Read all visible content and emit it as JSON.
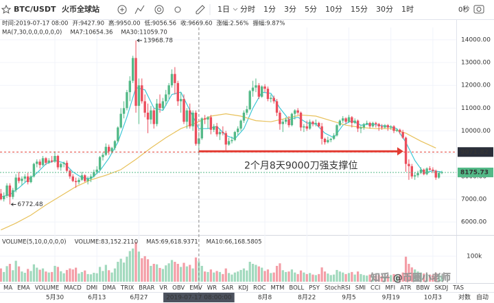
{
  "toolbar": {
    "symbol": "BTC/USDT",
    "exchange": "火币全球站",
    "interval": "1日",
    "periods": [
      "分时",
      "1分",
      "3分",
      "5分",
      "10分",
      "15分",
      "30分",
      "1时"
    ],
    "timer": "0秒"
  },
  "info": [
    "时间:2019-07-17 08:00",
    "开:9427.90",
    "高:9950.00",
    "低:9056.56",
    "收:9669.60",
    "涨幅:2.56%",
    "振幅:9.87%"
  ],
  "chart_data": {
    "type": "candlestick",
    "up_color": "#53b987",
    "down_color": "#eb4d5c",
    "grid": true,
    "ma_title": "MA(7,30,0,0,0,0,0,0)",
    "ma_lines": [
      {
        "name": "MA7:10654.36",
        "color": "#3cc7d6",
        "x": [
          0,
          3,
          6,
          9,
          12,
          15,
          18,
          21,
          24,
          27,
          30,
          33,
          36,
          39,
          42,
          45,
          48,
          51,
          54,
          57,
          60,
          63,
          66,
          69,
          72,
          75,
          78,
          81,
          84,
          87,
          90,
          93,
          96,
          99,
          102,
          105,
          108,
          111,
          114,
          117,
          120,
          123,
          126,
          129,
          132,
          135,
          138,
          141,
          144,
          147
        ],
        "values": [
          7100,
          7200,
          7500,
          7850,
          8150,
          8550,
          8700,
          8600,
          8200,
          7950,
          7900,
          8250,
          8800,
          9500,
          10600,
          11900,
          11800,
          11000,
          10900,
          11600,
          11700,
          10900,
          10100,
          10100,
          10200,
          9800,
          9650,
          10100,
          11000,
          11700,
          11650,
          11000,
          10500,
          10600,
          10350,
          10300,
          9900,
          9700,
          10250,
          10450,
          10250,
          10300,
          10250,
          10200,
          10100,
          9500,
          8700,
          8150,
          8250,
          8200
        ]
      },
      {
        "name": "MA30:11059.70",
        "color": "#e8c15a",
        "x": [
          0,
          5,
          10,
          15,
          20,
          25,
          30,
          35,
          40,
          45,
          50,
          55,
          60,
          65,
          70,
          75,
          80,
          85,
          90,
          95,
          100,
          105,
          110,
          115,
          120,
          125,
          130,
          135,
          140,
          145
        ],
        "values": [
          5650,
          5950,
          6300,
          6750,
          7150,
          7550,
          7850,
          8050,
          8300,
          8750,
          9250,
          9700,
          10100,
          10350,
          10650,
          10750,
          10650,
          10450,
          10400,
          10550,
          10700,
          10650,
          10450,
          10250,
          10150,
          10100,
          10100,
          9900,
          9550,
          9250
        ]
      }
    ],
    "candles": [
      [
        7250,
        7450,
        6950,
        7000
      ],
      [
        7000,
        7300,
        6900,
        7150
      ],
      [
        7150,
        7700,
        7050,
        7600
      ],
      [
        7600,
        7700,
        6772.48,
        7100
      ],
      [
        7100,
        7500,
        7000,
        7400
      ],
      [
        7400,
        8100,
        7300,
        7950
      ],
      [
        7950,
        8200,
        7700,
        7800
      ],
      [
        7800,
        8000,
        7600,
        7900
      ],
      [
        7900,
        8100,
        7750,
        8000
      ],
      [
        8000,
        8150,
        7650,
        7750
      ],
      [
        7750,
        8050,
        7700,
        8000
      ],
      [
        8000,
        8600,
        7950,
        8550
      ],
      [
        8550,
        8750,
        8400,
        8650
      ],
      [
        8650,
        8750,
        8350,
        8500
      ],
      [
        8500,
        8900,
        8450,
        8800
      ],
      [
        8800,
        8850,
        8500,
        8600
      ],
      [
        8600,
        8800,
        8550,
        8700
      ],
      [
        8700,
        8900,
        8600,
        8650
      ],
      [
        8650,
        9100,
        8600,
        8900
      ],
      [
        8900,
        8950,
        8300,
        8400
      ],
      [
        8400,
        8600,
        8250,
        8550
      ],
      [
        8550,
        8650,
        8400,
        8600
      ],
      [
        8600,
        8700,
        8200,
        8250
      ],
      [
        8250,
        8300,
        7900,
        8000
      ],
      [
        8000,
        8100,
        7750,
        7800
      ],
      [
        7800,
        7950,
        7500,
        7750
      ],
      [
        7750,
        7950,
        7650,
        7850
      ],
      [
        7850,
        8200,
        7800,
        8050
      ],
      [
        8050,
        8100,
        7750,
        7800
      ],
      [
        7800,
        8000,
        7650,
        7900
      ],
      [
        7900,
        8100,
        7750,
        8000
      ],
      [
        8000,
        8300,
        7950,
        8200
      ],
      [
        8200,
        8450,
        8100,
        8300
      ],
      [
        8300,
        8900,
        8250,
        8850
      ],
      [
        8850,
        9050,
        8700,
        8950
      ],
      [
        8950,
        9450,
        8900,
        9300
      ],
      [
        9300,
        9400,
        8950,
        9100
      ],
      [
        9100,
        9300,
        9000,
        9250
      ],
      [
        9250,
        9600,
        9150,
        9550
      ],
      [
        9550,
        10200,
        9500,
        10150
      ],
      [
        10150,
        11000,
        10100,
        10750
      ],
      [
        10750,
        11300,
        10550,
        11000
      ],
      [
        11000,
        11800,
        10900,
        11700
      ],
      [
        11700,
        12400,
        11300,
        12200
      ],
      [
        12200,
        13300,
        12100,
        13200
      ],
      [
        13200,
        13968.78,
        10800,
        11100
      ],
      [
        11100,
        12300,
        10300,
        12000
      ],
      [
        12000,
        12300,
        11200,
        11300
      ],
      [
        11300,
        11600,
        10600,
        10800
      ],
      [
        10800,
        11200,
        9900,
        10500
      ],
      [
        10500,
        11100,
        10300,
        10900
      ],
      [
        10900,
        11000,
        10100,
        10300
      ],
      [
        10300,
        11400,
        10200,
        11200
      ],
      [
        11200,
        11600,
        10800,
        11000
      ],
      [
        11000,
        11450,
        10900,
        11300
      ],
      [
        11300,
        11800,
        11100,
        11600
      ],
      [
        11600,
        12100,
        11400,
        12000
      ],
      [
        12000,
        12700,
        11900,
        12500
      ],
      [
        12500,
        12800,
        11600,
        12100
      ],
      [
        12100,
        12200,
        11100,
        11300
      ],
      [
        11300,
        11700,
        10800,
        11400
      ],
      [
        11400,
        11600,
        10300,
        10400
      ],
      [
        10400,
        11000,
        10100,
        10900
      ],
      [
        10900,
        11200,
        10100,
        10200
      ],
      [
        10200,
        10900,
        10000,
        10800
      ],
      [
        10800,
        10900,
        9350,
        9430
      ],
      [
        9427.9,
        9950,
        9056.56,
        9669.6
      ],
      [
        9670,
        10600,
        9600,
        10550
      ],
      [
        10550,
        10700,
        10300,
        10500
      ],
      [
        10500,
        10650,
        10100,
        10600
      ],
      [
        10600,
        10700,
        9850,
        10050
      ],
      [
        10050,
        10300,
        9950,
        10200
      ],
      [
        10200,
        10350,
        9750,
        9850
      ],
      [
        9850,
        10100,
        9600,
        9950
      ],
      [
        9950,
        10200,
        9800,
        9900
      ],
      [
        9900,
        10000,
        9150,
        9400
      ],
      [
        9400,
        9700,
        9350,
        9550
      ],
      [
        9550,
        9750,
        9450,
        9600
      ],
      [
        9600,
        10000,
        9550,
        9950
      ],
      [
        9950,
        10200,
        9800,
        10100
      ],
      [
        10100,
        10500,
        10000,
        10450
      ],
      [
        10450,
        10900,
        10350,
        10800
      ],
      [
        10800,
        11100,
        10700,
        10950
      ],
      [
        10950,
        11800,
        10900,
        11750
      ],
      [
        11750,
        12200,
        11500,
        11900
      ],
      [
        11900,
        12300,
        11700,
        12000
      ],
      [
        12000,
        12100,
        11400,
        11500
      ],
      [
        11500,
        12000,
        11450,
        11950
      ],
      [
        11950,
        12050,
        11700,
        11850
      ],
      [
        11850,
        11950,
        11300,
        11400
      ],
      [
        11400,
        11600,
        11250,
        11450
      ],
      [
        11450,
        11550,
        11200,
        11300
      ],
      [
        11300,
        11400,
        10650,
        10800
      ],
      [
        10800,
        10900,
        10050,
        10300
      ],
      [
        10300,
        10500,
        9950,
        10400
      ],
      [
        10400,
        10600,
        10300,
        10500
      ],
      [
        10500,
        10650,
        10150,
        10250
      ],
      [
        10250,
        10800,
        10200,
        10750
      ],
      [
        10750,
        10950,
        10500,
        10900
      ],
      [
        10900,
        11000,
        10700,
        10800
      ],
      [
        10800,
        10850,
        10000,
        10150
      ],
      [
        10150,
        10300,
        9950,
        10200
      ],
      [
        10200,
        10450,
        10000,
        10100
      ],
      [
        10100,
        10500,
        10050,
        10400
      ],
      [
        10400,
        10450,
        10200,
        10300
      ],
      [
        10300,
        10500,
        10200,
        10350
      ],
      [
        10350,
        10400,
        10150,
        10200
      ],
      [
        10200,
        10350,
        9400,
        9650
      ],
      [
        9650,
        9700,
        9400,
        9500
      ],
      [
        9500,
        9750,
        9450,
        9600
      ],
      [
        9600,
        9700,
        9500,
        9650
      ],
      [
        9650,
        9900,
        9600,
        9800
      ],
      [
        9800,
        10300,
        9750,
        10250
      ],
      [
        10250,
        10500,
        10200,
        10450
      ],
      [
        10450,
        10650,
        10350,
        10550
      ],
      [
        10550,
        10600,
        10300,
        10400
      ],
      [
        10400,
        10700,
        10350,
        10600
      ],
      [
        10600,
        10650,
        10150,
        10350
      ],
      [
        10350,
        10550,
        10300,
        10450
      ],
      [
        10450,
        10500,
        9950,
        10100
      ],
      [
        10100,
        10250,
        9900,
        10150
      ],
      [
        10150,
        10350,
        10050,
        10300
      ],
      [
        10300,
        10450,
        10250,
        10350
      ],
      [
        10350,
        10400,
        10100,
        10200
      ],
      [
        10200,
        10400,
        10150,
        10350
      ],
      [
        10350,
        10400,
        10150,
        10300
      ],
      [
        10300,
        10350,
        10000,
        10200
      ],
      [
        10200,
        10300,
        10050,
        10150
      ],
      [
        10150,
        10300,
        10100,
        10250
      ],
      [
        10250,
        10300,
        10000,
        10150
      ],
      [
        10150,
        10250,
        10050,
        10200
      ],
      [
        10200,
        10250,
        9900,
        10000
      ],
      [
        10000,
        10100,
        9950,
        10050
      ],
      [
        10050,
        10100,
        9850,
        9950
      ],
      [
        9950,
        10050,
        9650,
        9700
      ],
      [
        9700,
        9750,
        8200,
        8550
      ],
      [
        8550,
        8750,
        7850,
        8450
      ],
      [
        8450,
        8550,
        7900,
        8000
      ],
      [
        8000,
        8200,
        7850,
        8050
      ],
      [
        8050,
        8250,
        7950,
        8150
      ],
      [
        8150,
        8400,
        8100,
        8300
      ],
      [
        8300,
        8350,
        8050,
        8100
      ],
      [
        8100,
        8400,
        8050,
        8350
      ],
      [
        8350,
        8450,
        8250,
        8300
      ],
      [
        8300,
        8400,
        8150,
        8250
      ],
      [
        8250,
        8300,
        7850,
        7950
      ],
      [
        7950,
        8200,
        7900,
        8150
      ],
      [
        8150,
        8250,
        8100,
        8175.73
      ]
    ],
    "xlim": [
      -0.3,
      151.8
    ],
    "xticks": [
      {
        "value": 18,
        "label": "5月30"
      },
      {
        "value": 32,
        "label": "6月13"
      },
      {
        "value": 46,
        "label": "6月27"
      },
      {
        "value": 88,
        "label": "8月8"
      },
      {
        "value": 102,
        "label": "8月22"
      },
      {
        "value": 116,
        "label": "9月5"
      },
      {
        "value": 130,
        "label": "9月19"
      },
      {
        "value": 144,
        "label": "10月3"
      }
    ],
    "crosshair": {
      "index": 66,
      "label": "2019-07-17 08:00:00"
    },
    "ylim": [
      5490,
      14540
    ],
    "yticks": [
      {
        "value": 6000,
        "label": "6000.00"
      },
      {
        "value": 7000,
        "label": "7000.00"
      },
      {
        "value": 8000,
        "label": "8000.00"
      },
      {
        "value": 9000,
        "label": "9000.00"
      },
      {
        "value": 10000,
        "label": "10000.00"
      },
      {
        "value": 11000,
        "label": "11000.00"
      },
      {
        "value": 12000,
        "label": "12000.00"
      },
      {
        "value": 13000,
        "label": "13000.00"
      },
      {
        "value": 14000,
        "label": "14000.00"
      }
    ],
    "support": {
      "value": 9071.82,
      "color": "#e23b32",
      "annotation": "2个月8天9000刀强支撑位"
    },
    "volume": {
      "title": "VOLUME(5,10,0,0,0,0)",
      "label": "VOLUME:83,152.2110",
      "ma_labels": [
        {
          "text": "MA5:69,618.9371",
          "color": "#3cc7d6"
        },
        {
          "text": "MA10:66,168.5805",
          "color": "#e8c15a"
        }
      ],
      "ylim": [
        0,
        175000
      ],
      "yticks": [
        {
          "value": 100000,
          "label": "100k"
        }
      ],
      "values": [
        52000,
        38000,
        61000,
        70000,
        45000,
        82000,
        60000,
        40000,
        35000,
        50000,
        42000,
        68000,
        55000,
        47000,
        52000,
        40000,
        36000,
        38000,
        62000,
        58000,
        41000,
        33000,
        46000,
        52000,
        48000,
        55000,
        32000,
        38000,
        44000,
        30000,
        29000,
        35000,
        33000,
        58000,
        42000,
        66000,
        45000,
        36000,
        52000,
        78000,
        90000,
        75000,
        98000,
        120000,
        130000,
        155000,
        118000,
        92000,
        100000,
        88000,
        62000,
        70000,
        68000,
        54000,
        50000,
        64000,
        72000,
        85000,
        78000,
        70000,
        58000,
        74000,
        60000,
        66000,
        52000,
        95000,
        80000,
        62000,
        40000,
        38000,
        48000,
        36000,
        42000,
        38000,
        30000,
        52000,
        34000,
        28000,
        36000,
        40000,
        46000,
        52000,
        44000,
        78000,
        70000,
        66000,
        60000,
        55000,
        42000,
        48000,
        34000,
        36000,
        62000,
        72000,
        45000,
        38000,
        40000,
        48000,
        36000,
        30000,
        44000,
        36000,
        30000,
        34000,
        28000,
        26000,
        30000,
        56000,
        40000,
        32000,
        26000,
        28000,
        46000,
        40000,
        36000,
        30000,
        34000,
        38000,
        28000,
        40000,
        30000,
        26000,
        24000,
        28000,
        22000,
        24000,
        26000,
        22000,
        20000,
        24000,
        26000,
        30000,
        24000,
        28000,
        36000,
        98000,
        70000,
        56000,
        48000,
        40000,
        36000,
        32000,
        30000,
        28000,
        26000,
        34000,
        30000,
        24000
      ]
    }
  },
  "indicators": {
    "items": [
      "MA",
      "EMA",
      "VOLUME",
      "MACD",
      "DMI",
      "DMA",
      "TRIX",
      "BRAR",
      "VR",
      "OBV",
      "EMV",
      "WR",
      "SAR",
      "KDJ",
      "ROC",
      "MTM",
      "BOLL",
      "PSY",
      "StochRSI",
      "SMI",
      "CCI",
      "MFI",
      "ATR",
      "BBW",
      "SKDJ",
      "TAS"
    ],
    "active_index": 2
  },
  "scale_modes": [
    "对数",
    "自动"
  ],
  "watermark": "知乎 @币圈小老师"
}
